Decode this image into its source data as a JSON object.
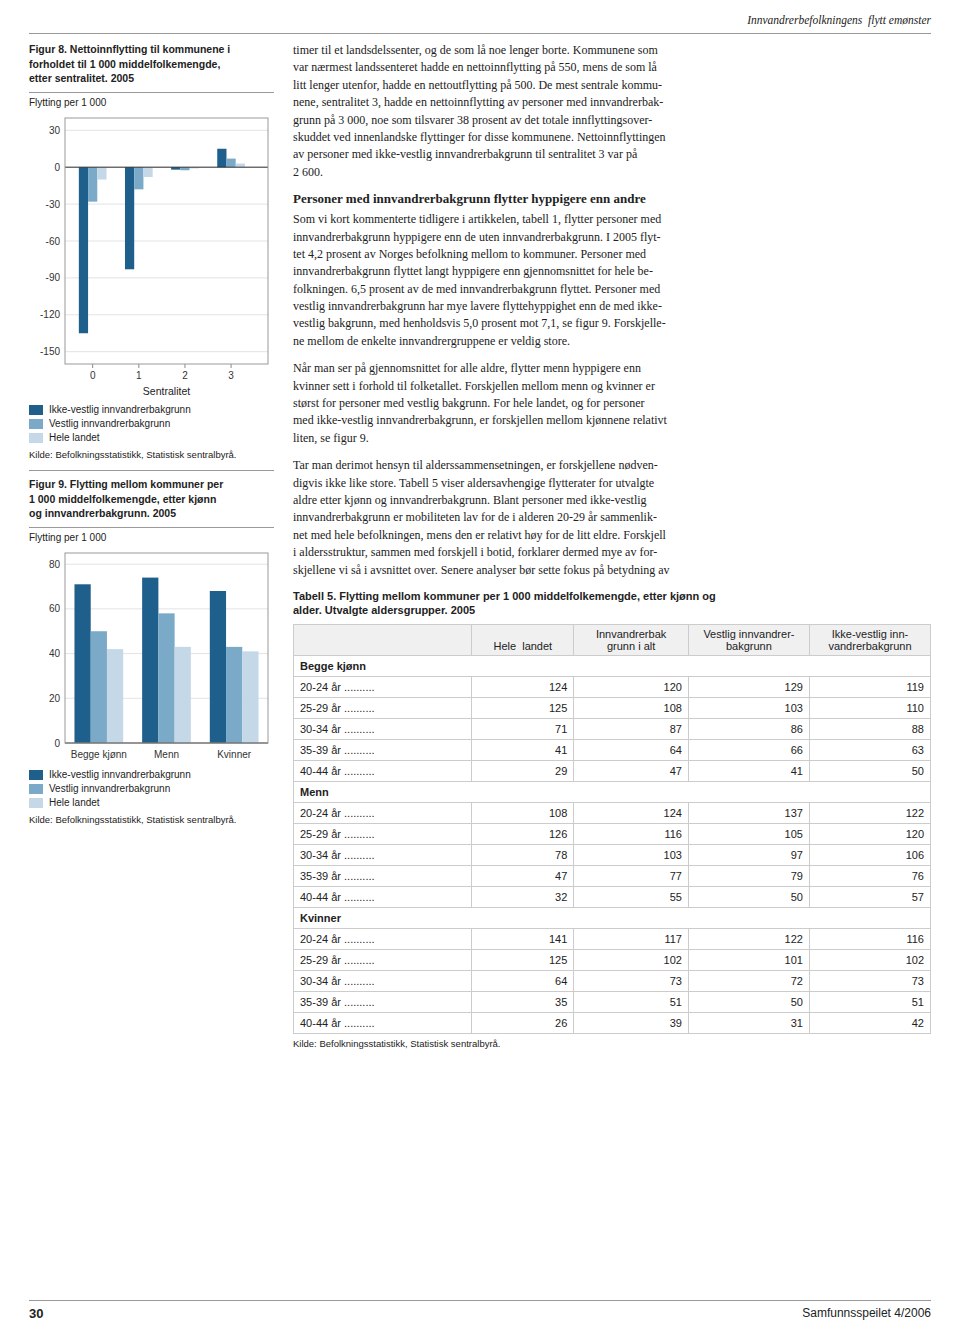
{
  "chart_data": [
    {
      "type": "bar",
      "title": "Figur 8. Nettoinnflytting til kommunene i\nforholdet til 1 000 middelfolkemengde,\netter sentralitet. 2005",
      "ylabel": "Flytting per 1 000",
      "xlabel": "Sentralitet",
      "x": [
        0,
        1,
        2,
        3
      ],
      "xlim": [
        -0.6,
        3.8
      ],
      "xticks": [
        0,
        1,
        2,
        3
      ],
      "ylim": [
        -160,
        40
      ],
      "yticks": [
        30,
        0,
        -30,
        -60,
        -90,
        -120,
        -150
      ],
      "grid": true,
      "legend": "bottom",
      "series": [
        {
          "name": "Ikke-vestlig innvandrerbakgrunn",
          "color": "#1f5f8b",
          "values": [
            -135,
            -83,
            -2,
            15
          ]
        },
        {
          "name": "Vestlig innvandrerbakgrunn",
          "color": "#7baac8",
          "values": [
            -28,
            -18,
            -2.5,
            7
          ]
        },
        {
          "name": "Hele landet",
          "color": "#c5d8e8",
          "values": [
            -10,
            -8,
            -1,
            3
          ]
        }
      ],
      "source": "Kilde: Befolkningsstatistikk, Statistisk sentralbyrå."
    },
    {
      "type": "bar",
      "title": "Figur 9. Flytting mellom kommuner per\n1 000 middelfolkemengde, etter kjønn\nog innvandrerbakgrunn. 2005",
      "ylabel": "Flytting per 1 000",
      "categories": [
        "Begge kjønn",
        "Menn",
        "Kvinner"
      ],
      "ylim": [
        0,
        85
      ],
      "yticks": [
        0,
        20,
        40,
        60,
        80
      ],
      "grid": true,
      "legend": "bottom",
      "series": [
        {
          "name": "Ikke-vestlig innvandrerbakgrunn",
          "color": "#1f5f8b",
          "values": [
            71,
            74,
            68
          ]
        },
        {
          "name": "Vestlig innvandrerbakgrunn",
          "color": "#7baac8",
          "values": [
            50,
            58,
            43
          ]
        },
        {
          "name": "Hele landet",
          "color": "#c5d8e8",
          "values": [
            42,
            43,
            41
          ]
        }
      ],
      "source": "Kilde: Befolkningsstatistikk, Statistisk sentralbyrå."
    }
  ],
  "page": {
    "header_italic": "Innvandrerbefolkningens  flytt emønster",
    "right_text": {
      "para1": "timer til et landsdelssenter, og de som lå noe lenger borte. Kommunene som\nvar nærmest landssenteret hadde en nettoinnflytting på 550, mens de som lå\nlitt lenger utenfor, hadde en nettoutflytting på 500. De mest sentrale kommu-\nnene, sentralitet 3, hadde en nettoinnflytting av personer med innvandrerbak-\ngrunn på 3 000, noe som tilsvarer 38 prosent av det totale innflyttingsover-\nskuddet ved innenlandske flyttinger for disse kommunene. Nettoinnflyttingen\nav personer med ikke-vestlig innvandrerbakgrunn til sentralitet 3 var på\n2 600.",
      "heading2": "Personer med innvandrerbakgrunn flytter hyppigere enn andre",
      "para2": "Som vi kort kommenterte tidligere i artikkelen, tabell 1, flytter personer med\ninnvandrerbakgrunn hyppigere enn de uten innvandrerbakgrunn. I 2005 flyt-\ntet 4,2 prosent av Norges befolkning mellom to kommuner. Personer med\ninnvandrerbakgrunn flyttet langt hyppigere enn gjennomsnittet for hele be-\nfolkningen. 6,5 prosent av de med innvandrerbakgrunn flyttet. Personer med\nvestlig innvandrerbakgrunn har mye lavere flyttehyppighet enn de med ikke-\nvestlig bakgrunn, med henholdsvis 5,0 prosent mot 7,1, se figur 9. Forskjelle-\nne mellom de enkelte innvandrergruppene er veldig store.",
      "para3": "Når man ser på gjennomsnittet for alle aldre, flytter menn hyppigere enn\nkvinner sett i forhold til folketallet. Forskjellen mellom menn og kvinner er\nstørst for personer med vestlig bakgrunn. For hele landet, og for personer\nmed ikke-vestlig innvandrerbakgrunn, er forskjellen mellom kjønnene relativt\nliten, se figur 9.",
      "para4": "Tar man derimot hensyn til alderssammensetningen, er forskjellene nødven-\ndigvis ikke like store. Tabell 5 viser aldersavhengige flytterater for utvalgte\naldre etter kjønn og innvandrerbakgrunn. Blant personer med ikke-vestlig\ninnvandrerbakgrunn er mobiliteten lav for de i alderen 20-29 år sammenlik-\nnet med hele befolkningen, mens den er relativt høy for de litt eldre. Forskjell\ni aldersstruktur, sammen med forskjell i botid, forklarer dermed mye av for-\nskjellene vi så i avsnittet over. Senere analyser bør sette fokus på betydning av"
    },
    "table": {
      "title": "Tabell 5. Flytting mellom kommuner per 1 000 middelfolkemengde, etter kjønn og\nalder. Utvalgte aldersgrupper. 2005",
      "columns": [
        "Hele  landet",
        "Innvandrerbak\ngrunn i alt",
        "Vestlig innvandrer-\nbakgrunn",
        "Ikke-vestlig inn-\nvandrerbakgrunn"
      ],
      "groups": [
        {
          "name": "Begge kjønn",
          "rows": [
            {
              "label": "20-24 år ..........",
              "values": [
                124,
                120,
                129,
                119
              ]
            },
            {
              "label": "25-29 år ..........",
              "values": [
                125,
                108,
                103,
                110
              ]
            },
            {
              "label": "30-34 år ..........",
              "values": [
                71,
                87,
                86,
                88
              ]
            },
            {
              "label": "35-39 år ..........",
              "values": [
                41,
                64,
                66,
                63
              ]
            },
            {
              "label": "40-44 år ..........",
              "values": [
                29,
                47,
                41,
                50
              ]
            }
          ]
        },
        {
          "name": "Menn",
          "rows": [
            {
              "label": "20-24 år ..........",
              "values": [
                108,
                124,
                137,
                122
              ]
            },
            {
              "label": "25-29 år ..........",
              "values": [
                126,
                116,
                105,
                120
              ]
            },
            {
              "label": "30-34 år ..........",
              "values": [
                78,
                103,
                97,
                106
              ]
            },
            {
              "label": "35-39 år ..........",
              "values": [
                47,
                77,
                79,
                76
              ]
            },
            {
              "label": "40-44 år ..........",
              "values": [
                32,
                55,
                50,
                57
              ]
            }
          ]
        },
        {
          "name": "Kvinner",
          "rows": [
            {
              "label": "20-24 år ..........",
              "values": [
                141,
                117,
                122,
                116
              ]
            },
            {
              "label": "25-29 år ..........",
              "values": [
                125,
                102,
                101,
                102
              ]
            },
            {
              "label": "30-34 år ..........",
              "values": [
                64,
                73,
                72,
                73
              ]
            },
            {
              "label": "35-39 år ..........",
              "values": [
                35,
                51,
                50,
                51
              ]
            },
            {
              "label": "40-44 år ..........",
              "values": [
                26,
                39,
                31,
                42
              ]
            }
          ]
        }
      ],
      "source": "Kilde: Befolkningsstatistikk, Statistisk sentralbyrå."
    },
    "footer_left": "30",
    "footer_right": "Samfunnsspeilet 4/2006"
  }
}
